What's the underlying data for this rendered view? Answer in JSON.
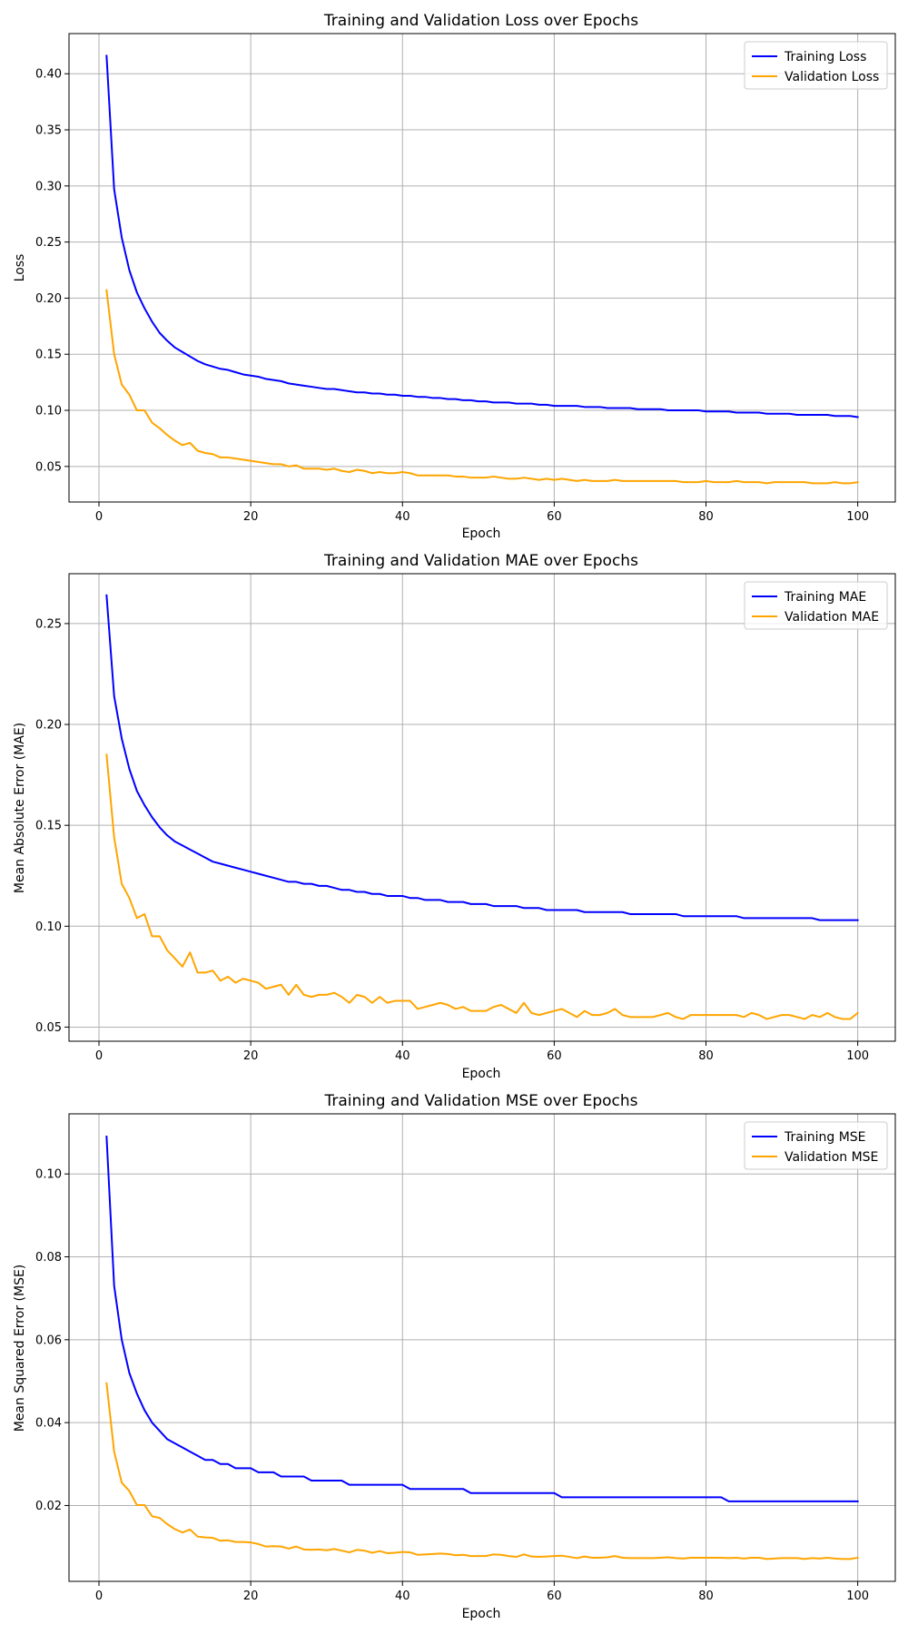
{
  "colors": {
    "training": "#0000ff",
    "validation": "#ffa500"
  },
  "chart_data": [
    {
      "type": "line",
      "title": "Training and Validation Loss over Epochs",
      "xlabel": "Epoch",
      "ylabel": "Loss",
      "xlim": [
        -3.95,
        104.95
      ],
      "ylim": [
        0.0183,
        0.4358
      ],
      "xticks": [
        0,
        20,
        40,
        60,
        80,
        100
      ],
      "yticks": [
        0.05,
        0.1,
        0.15,
        0.2,
        0.25,
        0.3,
        0.35,
        0.4
      ],
      "ytick_labels": [
        "0.05",
        "0.10",
        "0.15",
        "0.20",
        "0.25",
        "0.30",
        "0.35",
        "0.40"
      ],
      "grid": true,
      "legend": "upper-right",
      "series": [
        {
          "name": "Training Loss",
          "key": "training",
          "x_start": 1,
          "x_step": 1,
          "values": [
            0.416,
            0.297,
            0.254,
            0.225,
            0.205,
            0.191,
            0.179,
            0.169,
            0.162,
            0.156,
            0.152,
            0.148,
            0.144,
            0.141,
            0.139,
            0.137,
            0.136,
            0.134,
            0.132,
            0.131,
            0.13,
            0.128,
            0.127,
            0.126,
            0.124,
            0.123,
            0.122,
            0.121,
            0.12,
            0.119,
            0.119,
            0.118,
            0.117,
            0.116,
            0.116,
            0.115,
            0.115,
            0.114,
            0.114,
            0.113,
            0.113,
            0.112,
            0.112,
            0.111,
            0.111,
            0.11,
            0.11,
            0.109,
            0.109,
            0.108,
            0.108,
            0.107,
            0.107,
            0.107,
            0.106,
            0.106,
            0.106,
            0.105,
            0.105,
            0.104,
            0.104,
            0.104,
            0.104,
            0.103,
            0.103,
            0.103,
            0.102,
            0.102,
            0.102,
            0.102,
            0.101,
            0.101,
            0.101,
            0.101,
            0.1,
            0.1,
            0.1,
            0.1,
            0.1,
            0.099,
            0.099,
            0.099,
            0.099,
            0.098,
            0.098,
            0.098,
            0.098,
            0.097,
            0.097,
            0.097,
            0.097,
            0.096,
            0.096,
            0.096,
            0.096,
            0.096,
            0.095,
            0.095,
            0.095,
            0.094
          ]
        },
        {
          "name": "Validation Loss",
          "key": "validation",
          "x_start": 1,
          "x_step": 1,
          "values": [
            0.207,
            0.15,
            0.123,
            0.114,
            0.1,
            0.1,
            0.089,
            0.084,
            0.078,
            0.073,
            0.069,
            0.071,
            0.064,
            0.062,
            0.061,
            0.058,
            0.058,
            0.057,
            0.056,
            0.055,
            0.054,
            0.053,
            0.052,
            0.052,
            0.05,
            0.051,
            0.048,
            0.048,
            0.048,
            0.047,
            0.048,
            0.046,
            0.045,
            0.047,
            0.046,
            0.044,
            0.045,
            0.044,
            0.044,
            0.045,
            0.044,
            0.042,
            0.042,
            0.042,
            0.042,
            0.042,
            0.041,
            0.041,
            0.04,
            0.04,
            0.04,
            0.041,
            0.04,
            0.039,
            0.039,
            0.04,
            0.039,
            0.038,
            0.039,
            0.038,
            0.039,
            0.038,
            0.037,
            0.038,
            0.037,
            0.037,
            0.037,
            0.038,
            0.037,
            0.037,
            0.037,
            0.037,
            0.037,
            0.037,
            0.037,
            0.037,
            0.036,
            0.036,
            0.036,
            0.037,
            0.036,
            0.036,
            0.036,
            0.037,
            0.036,
            0.036,
            0.036,
            0.035,
            0.036,
            0.036,
            0.036,
            0.036,
            0.036,
            0.035,
            0.035,
            0.035,
            0.036,
            0.035,
            0.035,
            0.036
          ]
        }
      ]
    },
    {
      "type": "line",
      "title": "Training and Validation MAE over Epochs",
      "xlabel": "Epoch",
      "ylabel": "Mean Absolute Error (MAE)",
      "xlim": [
        -3.95,
        104.95
      ],
      "ylim": [
        0.043,
        0.2747
      ],
      "xticks": [
        0,
        20,
        40,
        60,
        80,
        100
      ],
      "yticks": [
        0.05,
        0.1,
        0.15,
        0.2,
        0.25
      ],
      "ytick_labels": [
        "0.05",
        "0.10",
        "0.15",
        "0.20",
        "0.25"
      ],
      "grid": true,
      "legend": "upper-right",
      "series": [
        {
          "name": "Training MAE",
          "key": "training",
          "x_start": 1,
          "x_step": 1,
          "values": [
            0.264,
            0.214,
            0.193,
            0.178,
            0.167,
            0.16,
            0.154,
            0.149,
            0.145,
            0.142,
            0.14,
            0.138,
            0.136,
            0.134,
            0.132,
            0.131,
            0.13,
            0.129,
            0.128,
            0.127,
            0.126,
            0.125,
            0.124,
            0.123,
            0.122,
            0.122,
            0.121,
            0.121,
            0.12,
            0.12,
            0.119,
            0.118,
            0.118,
            0.117,
            0.117,
            0.116,
            0.116,
            0.115,
            0.115,
            0.115,
            0.114,
            0.114,
            0.113,
            0.113,
            0.113,
            0.112,
            0.112,
            0.112,
            0.111,
            0.111,
            0.111,
            0.11,
            0.11,
            0.11,
            0.11,
            0.109,
            0.109,
            0.109,
            0.108,
            0.108,
            0.108,
            0.108,
            0.108,
            0.107,
            0.107,
            0.107,
            0.107,
            0.107,
            0.107,
            0.106,
            0.106,
            0.106,
            0.106,
            0.106,
            0.106,
            0.106,
            0.105,
            0.105,
            0.105,
            0.105,
            0.105,
            0.105,
            0.105,
            0.105,
            0.104,
            0.104,
            0.104,
            0.104,
            0.104,
            0.104,
            0.104,
            0.104,
            0.104,
            0.104,
            0.103,
            0.103,
            0.103,
            0.103,
            0.103,
            0.103
          ]
        },
        {
          "name": "Validation MAE",
          "key": "validation",
          "x_start": 1,
          "x_step": 1,
          "values": [
            0.185,
            0.144,
            0.121,
            0.114,
            0.104,
            0.106,
            0.095,
            0.095,
            0.088,
            0.084,
            0.08,
            0.087,
            0.077,
            0.077,
            0.078,
            0.073,
            0.075,
            0.072,
            0.074,
            0.073,
            0.072,
            0.069,
            0.07,
            0.071,
            0.066,
            0.071,
            0.066,
            0.065,
            0.066,
            0.066,
            0.067,
            0.065,
            0.062,
            0.066,
            0.065,
            0.062,
            0.065,
            0.062,
            0.063,
            0.063,
            0.063,
            0.059,
            0.06,
            0.061,
            0.062,
            0.061,
            0.059,
            0.06,
            0.058,
            0.058,
            0.058,
            0.06,
            0.061,
            0.059,
            0.057,
            0.062,
            0.057,
            0.056,
            0.057,
            0.058,
            0.059,
            0.057,
            0.055,
            0.058,
            0.056,
            0.056,
            0.057,
            0.059,
            0.056,
            0.055,
            0.055,
            0.055,
            0.055,
            0.056,
            0.057,
            0.055,
            0.054,
            0.056,
            0.056,
            0.056,
            0.056,
            0.056,
            0.056,
            0.056,
            0.055,
            0.057,
            0.056,
            0.054,
            0.055,
            0.056,
            0.056,
            0.055,
            0.054,
            0.056,
            0.055,
            0.057,
            0.055,
            0.054,
            0.054,
            0.057
          ]
        }
      ]
    },
    {
      "type": "line",
      "title": "Training and Validation MSE over Epochs",
      "xlabel": "Epoch",
      "ylabel": "Mean Squared Error (MSE)",
      "xlim": [
        -3.95,
        104.95
      ],
      "ylim": [
        0.0017,
        0.1145
      ],
      "xticks": [
        0,
        20,
        40,
        60,
        80,
        100
      ],
      "yticks": [
        0.02,
        0.04,
        0.06,
        0.08,
        0.1
      ],
      "ytick_labels": [
        "0.02",
        "0.04",
        "0.06",
        "0.08",
        "0.10"
      ],
      "grid": true,
      "legend": "upper-right",
      "series": [
        {
          "name": "Training MSE",
          "key": "training",
          "x_start": 1,
          "x_step": 1,
          "values": [
            0.109,
            0.073,
            0.06,
            0.052,
            0.047,
            0.043,
            0.04,
            0.038,
            0.036,
            0.035,
            0.034,
            0.033,
            0.032,
            0.031,
            0.031,
            0.03,
            0.03,
            0.029,
            0.029,
            0.029,
            0.028,
            0.028,
            0.028,
            0.027,
            0.027,
            0.027,
            0.027,
            0.026,
            0.026,
            0.026,
            0.026,
            0.026,
            0.025,
            0.025,
            0.025,
            0.025,
            0.025,
            0.025,
            0.025,
            0.025,
            0.024,
            0.024,
            0.024,
            0.024,
            0.024,
            0.024,
            0.024,
            0.024,
            0.023,
            0.023,
            0.023,
            0.023,
            0.023,
            0.023,
            0.023,
            0.023,
            0.023,
            0.023,
            0.023,
            0.023,
            0.022,
            0.022,
            0.022,
            0.022,
            0.022,
            0.022,
            0.022,
            0.022,
            0.022,
            0.022,
            0.022,
            0.022,
            0.022,
            0.022,
            0.022,
            0.022,
            0.022,
            0.022,
            0.022,
            0.022,
            0.022,
            0.022,
            0.021,
            0.021,
            0.021,
            0.021,
            0.021,
            0.021,
            0.021,
            0.021,
            0.021,
            0.021,
            0.021,
            0.021,
            0.021,
            0.021,
            0.021,
            0.021,
            0.021,
            0.021
          ]
        },
        {
          "name": "Validation MSE",
          "key": "validation",
          "x_start": 1,
          "x_step": 1,
          "values": [
            0.0495,
            0.033,
            0.0255,
            0.0235,
            0.0201,
            0.0201,
            0.0174,
            0.017,
            0.0155,
            0.0143,
            0.0135,
            0.0142,
            0.0125,
            0.0123,
            0.0122,
            0.0115,
            0.0116,
            0.0112,
            0.0112,
            0.0111,
            0.0107,
            0.0101,
            0.0102,
            0.0101,
            0.0096,
            0.0101,
            0.0094,
            0.0093,
            0.0094,
            0.0092,
            0.0095,
            0.0091,
            0.0087,
            0.0093,
            0.0091,
            0.0086,
            0.009,
            0.0085,
            0.0086,
            0.0088,
            0.0087,
            0.0081,
            0.0082,
            0.0083,
            0.0084,
            0.0083,
            0.008,
            0.0081,
            0.0078,
            0.0078,
            0.0078,
            0.0082,
            0.0081,
            0.0078,
            0.0076,
            0.0082,
            0.0077,
            0.0076,
            0.0077,
            0.0078,
            0.0079,
            0.0076,
            0.0073,
            0.0077,
            0.0074,
            0.0074,
            0.0075,
            0.0078,
            0.0074,
            0.0073,
            0.0073,
            0.0073,
            0.0073,
            0.0074,
            0.0075,
            0.0073,
            0.0072,
            0.0074,
            0.0074,
            0.0074,
            0.0074,
            0.0074,
            0.0073,
            0.0074,
            0.0072,
            0.0074,
            0.0074,
            0.0071,
            0.0072,
            0.0073,
            0.0073,
            0.0073,
            0.0071,
            0.0073,
            0.0072,
            0.0074,
            0.0072,
            0.0071,
            0.0071,
            0.0074
          ]
        }
      ]
    }
  ]
}
